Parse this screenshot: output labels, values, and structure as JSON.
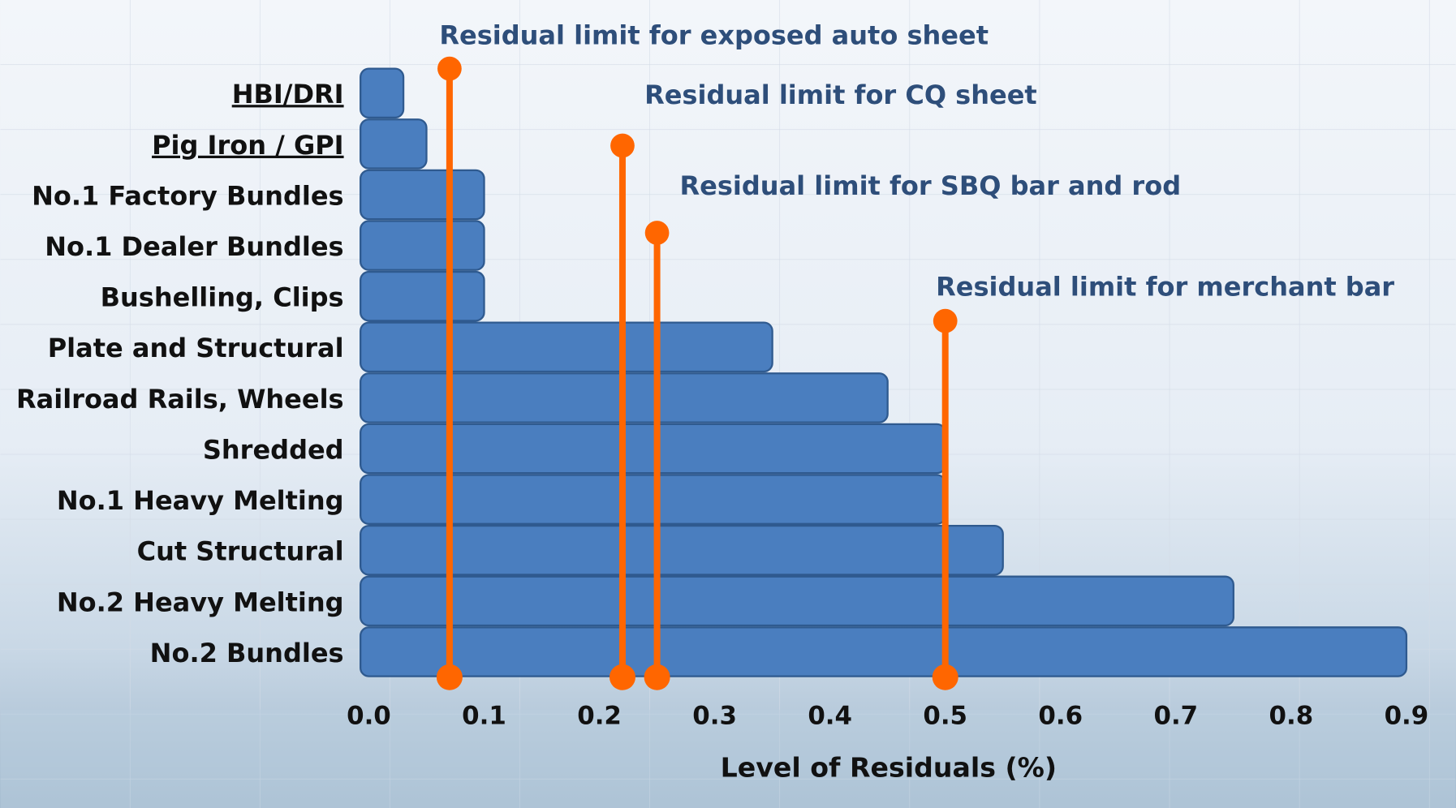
{
  "chart_data": {
    "type": "bar",
    "orientation": "horizontal",
    "x_label": "Level of Residuals (%)",
    "categories": [
      "HBI/DRI",
      "Pig Iron / GPI",
      "No.1 Factory Bundles",
      "No.1 Dealer Bundles",
      "Bushelling, Clips",
      "Plate and Structural",
      "Railroad Rails, Wheels",
      "Shredded",
      "No.1 Heavy Melting",
      "Cut Structural",
      "No.2 Heavy Melting",
      "No.2 Bundles"
    ],
    "values": [
      0.03,
      0.05,
      0.1,
      0.1,
      0.1,
      0.35,
      0.45,
      0.5,
      0.5,
      0.55,
      0.75,
      0.9
    ],
    "color": "#4a7ebf",
    "xlim": [
      0,
      0.9
    ],
    "xticks": [
      {
        "value": 0,
        "label": "0.0"
      },
      0.1,
      0.2,
      0.3,
      0.4,
      0.5,
      0.6,
      0.7,
      0.8,
      0.9
    ],
    "limits": [
      {
        "label": "Residual limit for exposed auto sheet",
        "value": 0.07
      },
      {
        "label": "Residual limit for CQ sheet",
        "value": 0.22
      },
      {
        "label": "Residual limit for SBQ bar and rod",
        "value": 0.25
      },
      {
        "label": "Residual limit for merchant bar",
        "value": 0.5
      }
    ],
    "limit_color": "#ff6600"
  }
}
